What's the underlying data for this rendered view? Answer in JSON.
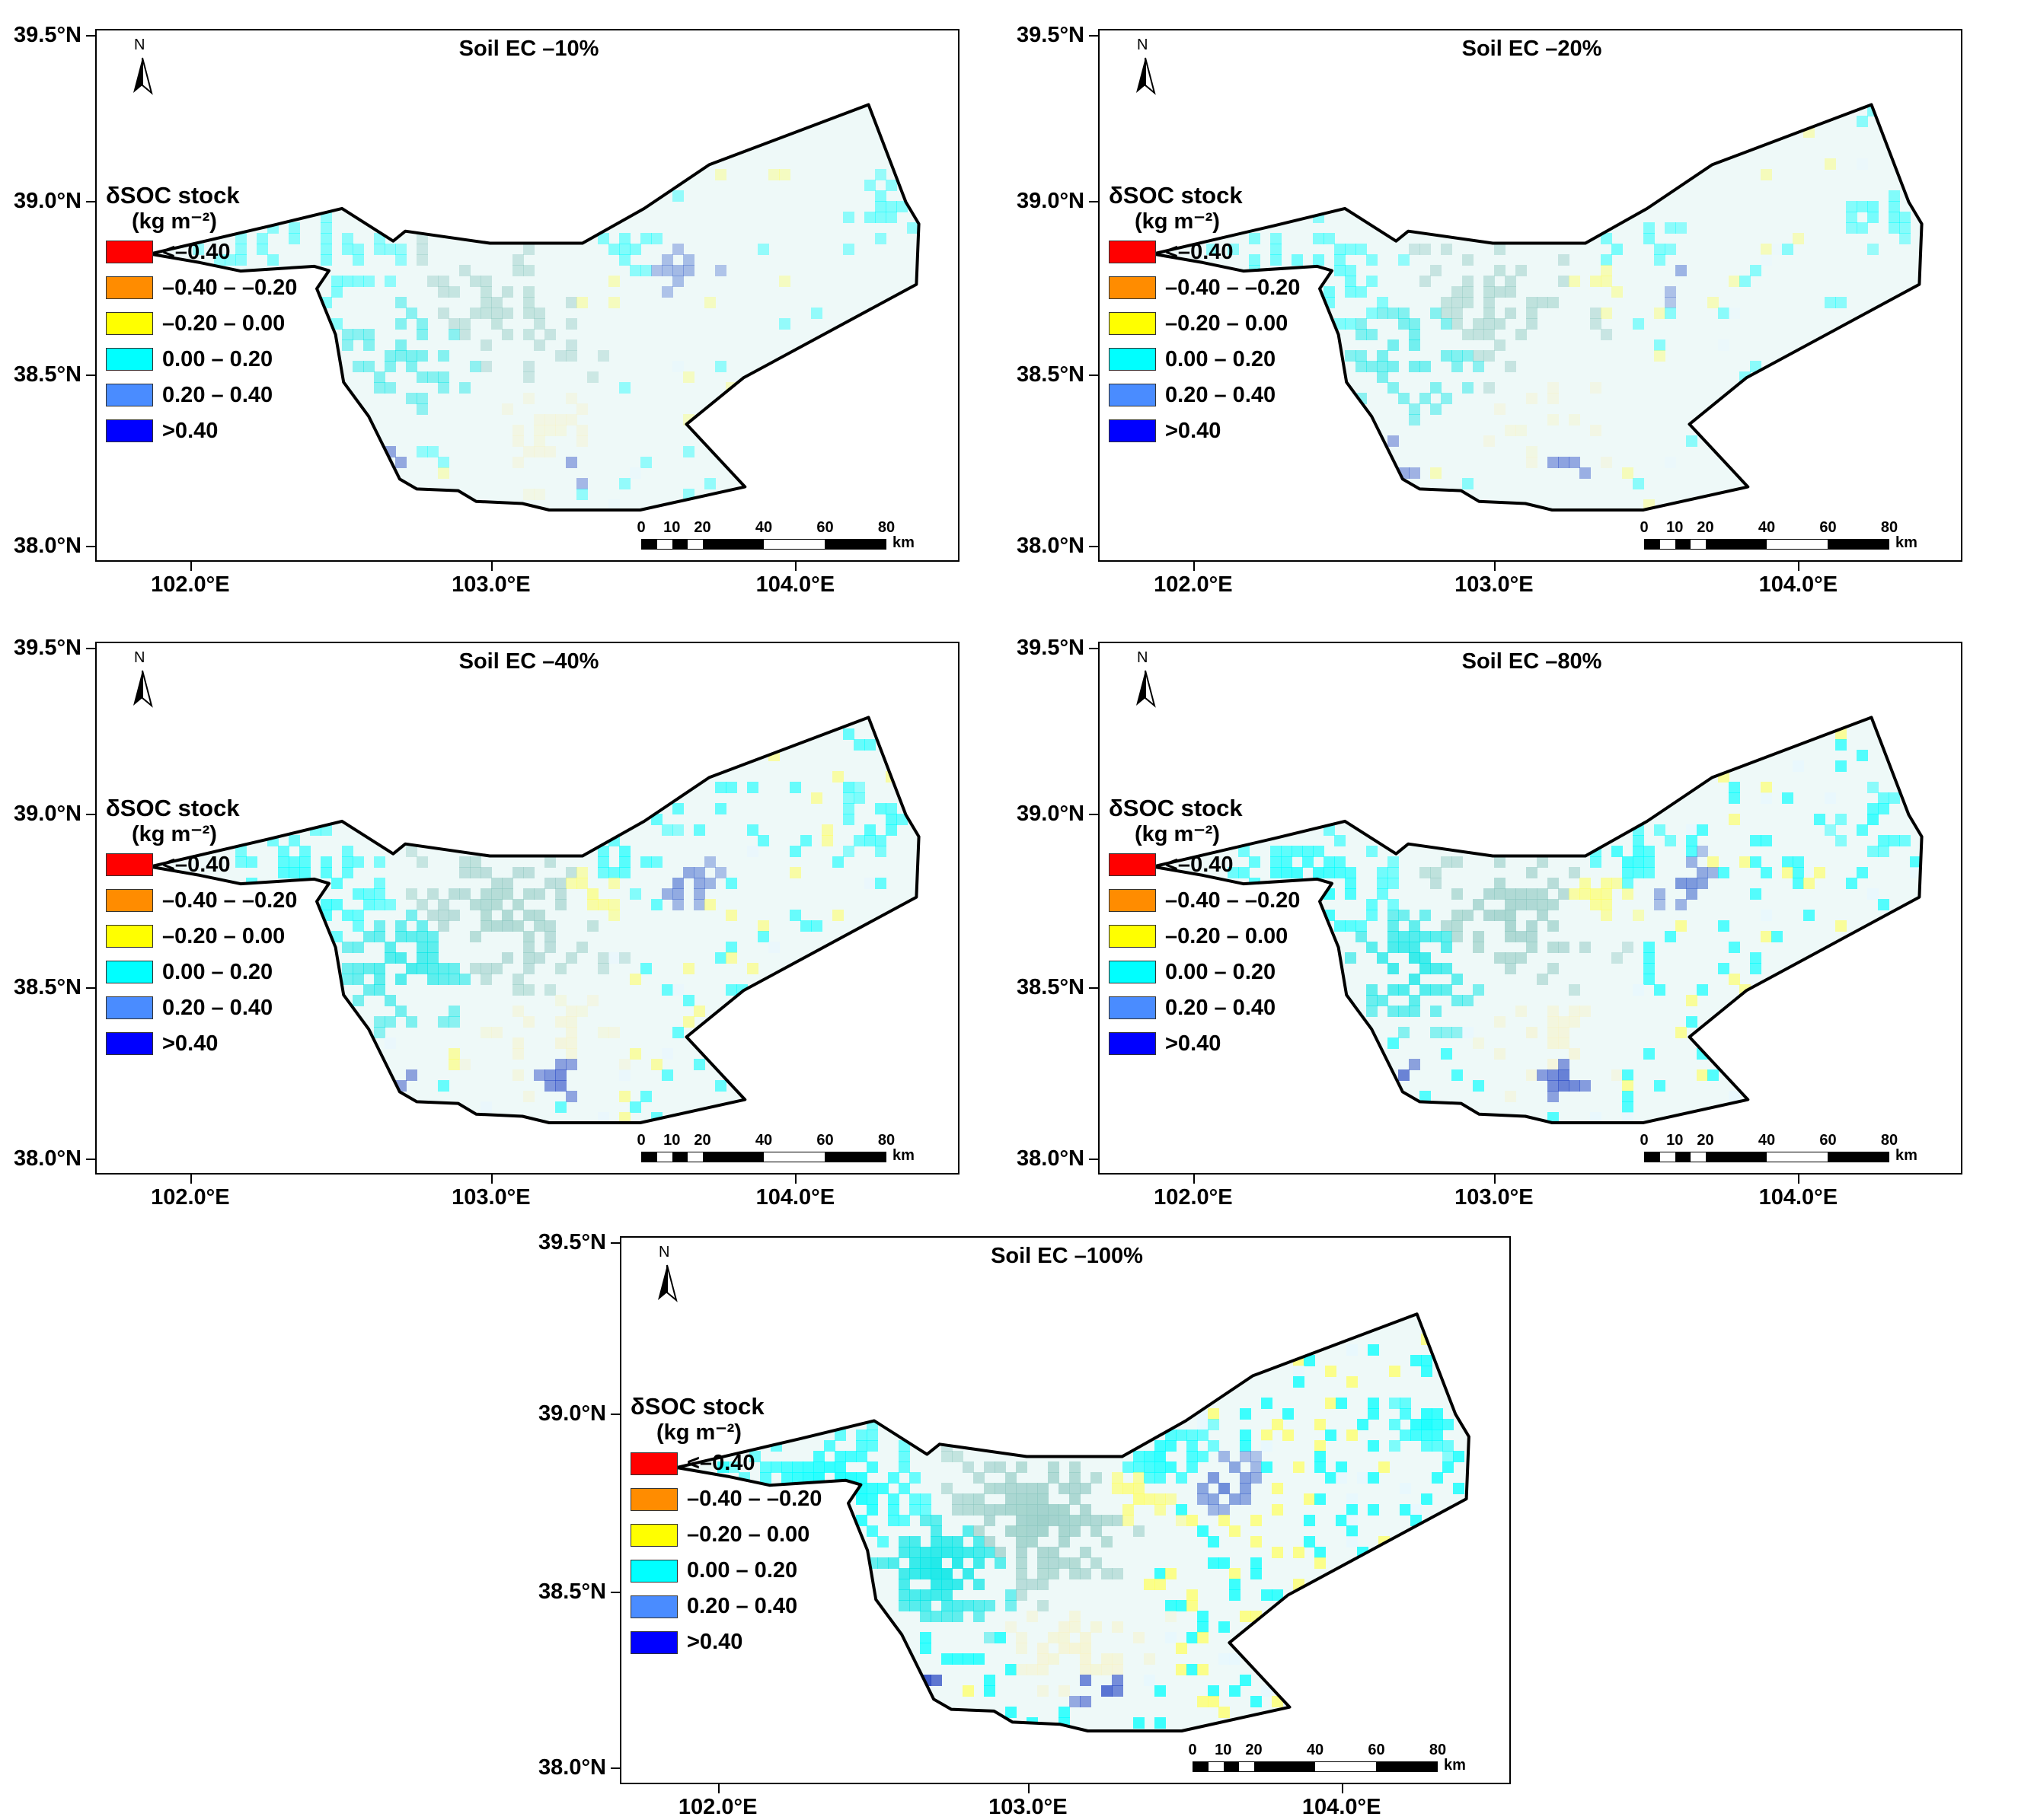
{
  "panels": [
    {
      "title": "Soil EC –10%",
      "intensity": 0.25
    },
    {
      "title": "Soil EC –20%",
      "intensity": 0.35
    },
    {
      "title": "Soil EC –40%",
      "intensity": 0.65
    },
    {
      "title": "Soil EC –80%",
      "intensity": 0.8
    },
    {
      "title": "Soil EC –100%",
      "intensity": 1.0
    }
  ],
  "legend": {
    "title": "δSOC stock",
    "unit": "(kg m⁻²)",
    "classes": [
      {
        "label": "<–0.40",
        "color": "#ff0000"
      },
      {
        "label": "–0.40 – –0.20",
        "color": "#ff8c00"
      },
      {
        "label": "–0.20 – 0.00",
        "color": "#ffff00"
      },
      {
        "label": "0.00 – 0.20",
        "color": "#00ffff"
      },
      {
        "label": "0.20 – 0.40",
        "color": "#4a8cff"
      },
      {
        "label": ">0.40",
        "color": "#0000ff"
      }
    ]
  },
  "north_arrow": {
    "letter": "N"
  },
  "scale_bar": {
    "ticks": [
      "0",
      "10",
      "20",
      "40",
      "60",
      "80"
    ],
    "unit": "km"
  },
  "axes": {
    "y_labels": [
      "39.5°N",
      "39.0°N",
      "38.5°N",
      "38.0°N"
    ],
    "x_labels": [
      "102.0°E",
      "103.0°E",
      "104.0°E"
    ]
  }
}
